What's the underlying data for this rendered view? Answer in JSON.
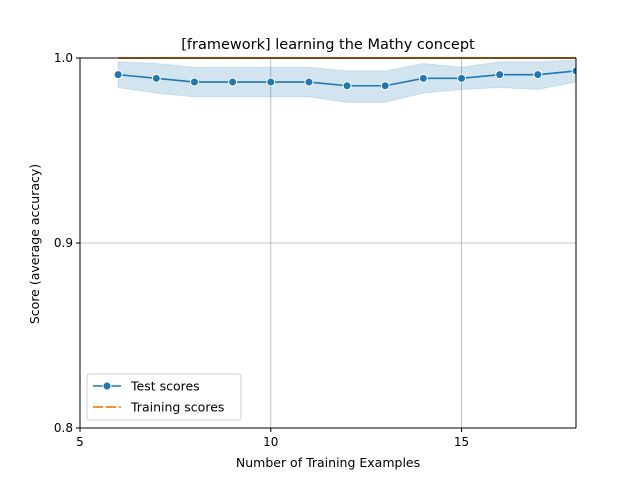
{
  "chart_data": {
    "type": "line",
    "title": "[framework] learning the Mathy concept",
    "xlabel": "Number of Training Examples",
    "ylabel": "Score (average accuracy)",
    "xlim": [
      5,
      18
    ],
    "ylim": [
      0.8,
      1.0
    ],
    "xticks": [
      5,
      10,
      15
    ],
    "yticks": [
      0.8,
      0.9,
      1.0
    ],
    "xtick_labels": [
      "5",
      "10",
      "15"
    ],
    "ytick_labels": [
      "0.8",
      "0.9",
      "1.0"
    ],
    "grid": true,
    "legend_position": "lower-left",
    "series": [
      {
        "name": "Test scores",
        "color": "#1f77b4",
        "marker": "circle",
        "x": [
          6,
          7,
          8,
          9,
          10,
          11,
          12,
          13,
          14,
          15,
          16,
          17,
          18
        ],
        "y": [
          0.991,
          0.989,
          0.987,
          0.987,
          0.987,
          0.987,
          0.985,
          0.985,
          0.989,
          0.989,
          0.991,
          0.991,
          0.993
        ],
        "band_lower": [
          0.984,
          0.981,
          0.979,
          0.979,
          0.979,
          0.979,
          0.976,
          0.976,
          0.981,
          0.983,
          0.984,
          0.983,
          0.987
        ],
        "band_upper": [
          0.998,
          0.997,
          0.995,
          0.995,
          0.995,
          0.995,
          0.993,
          0.993,
          0.997,
          0.995,
          0.998,
          0.998,
          0.999
        ]
      },
      {
        "name": "Training scores",
        "color": "#ff7f0e",
        "marker": "none",
        "x": [
          6,
          7,
          8,
          9,
          10,
          11,
          12,
          13,
          14,
          15,
          16,
          17,
          18
        ],
        "y": [
          1.0,
          1.0,
          1.0,
          1.0,
          1.0,
          1.0,
          1.0,
          1.0,
          1.0,
          1.0,
          1.0,
          1.0,
          1.0
        ]
      }
    ]
  }
}
